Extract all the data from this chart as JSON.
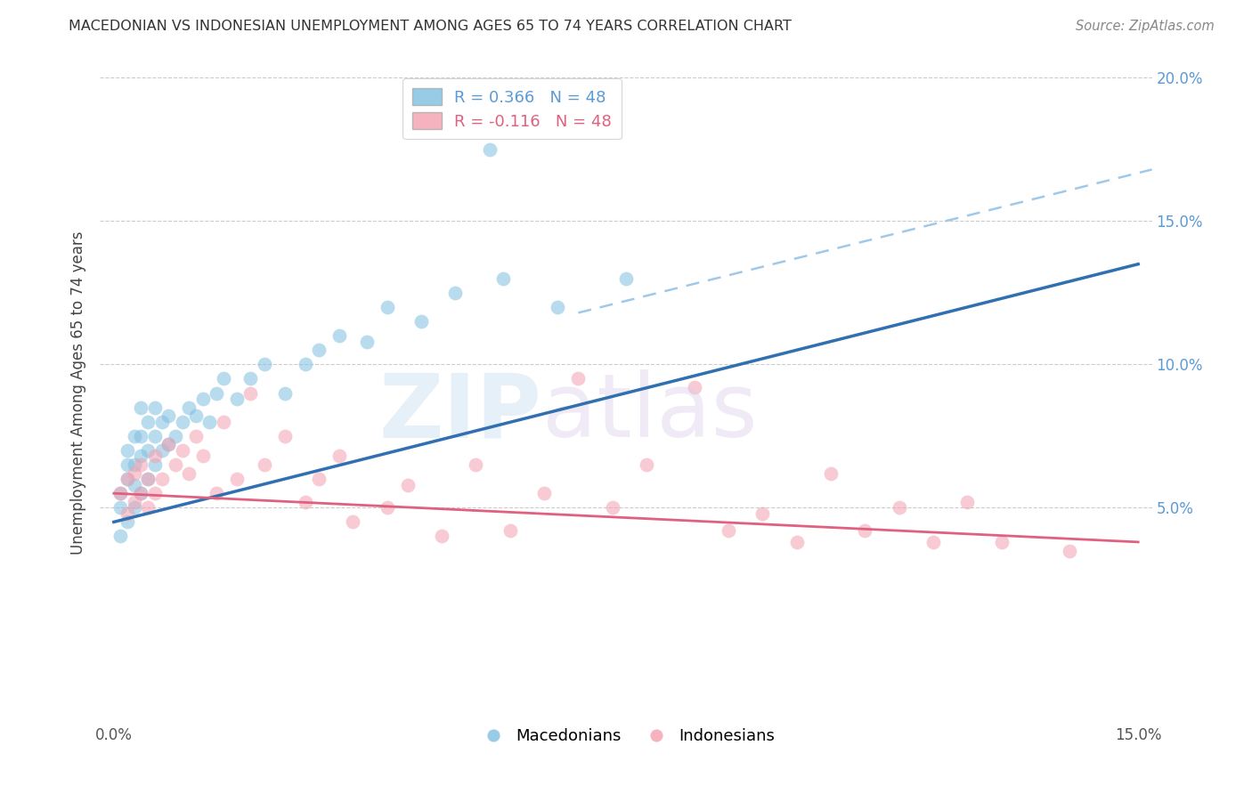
{
  "title": "MACEDONIAN VS INDONESIAN UNEMPLOYMENT AMONG AGES 65 TO 74 YEARS CORRELATION CHART",
  "source": "Source: ZipAtlas.com",
  "ylabel": "Unemployment Among Ages 65 to 74 years",
  "blue_color": "#7fbfdf",
  "pink_color": "#f4a0b0",
  "blue_line_color": "#3070b0",
  "pink_line_color": "#e06080",
  "dashed_line_color": "#a0c8e8",
  "xlim": [
    -0.002,
    0.152
  ],
  "ylim": [
    -0.025,
    0.205
  ],
  "mac_r": 0.366,
  "indo_r": -0.116,
  "n": 48,
  "mac_line_x0": 0.0,
  "mac_line_y0": 0.045,
  "mac_line_x1": 0.15,
  "mac_line_y1": 0.135,
  "indo_line_x0": 0.0,
  "indo_line_y0": 0.055,
  "indo_line_x1": 0.15,
  "indo_line_y1": 0.038,
  "dash_line_x0": 0.068,
  "dash_line_y0": 0.118,
  "dash_line_x1": 0.152,
  "dash_line_y1": 0.168,
  "mac_points_x": [
    0.001,
    0.001,
    0.001,
    0.002,
    0.002,
    0.002,
    0.002,
    0.003,
    0.003,
    0.003,
    0.003,
    0.004,
    0.004,
    0.004,
    0.004,
    0.005,
    0.005,
    0.005,
    0.006,
    0.006,
    0.006,
    0.007,
    0.007,
    0.008,
    0.008,
    0.009,
    0.01,
    0.011,
    0.012,
    0.013,
    0.014,
    0.015,
    0.016,
    0.018,
    0.02,
    0.022,
    0.025,
    0.028,
    0.03,
    0.033,
    0.037,
    0.04,
    0.045,
    0.05,
    0.057,
    0.065,
    0.075,
    0.055
  ],
  "mac_points_y": [
    0.04,
    0.05,
    0.055,
    0.045,
    0.06,
    0.065,
    0.07,
    0.05,
    0.058,
    0.065,
    0.075,
    0.055,
    0.068,
    0.075,
    0.085,
    0.06,
    0.07,
    0.08,
    0.065,
    0.075,
    0.085,
    0.07,
    0.08,
    0.072,
    0.082,
    0.075,
    0.08,
    0.085,
    0.082,
    0.088,
    0.08,
    0.09,
    0.095,
    0.088,
    0.095,
    0.1,
    0.09,
    0.1,
    0.105,
    0.11,
    0.108,
    0.12,
    0.115,
    0.125,
    0.13,
    0.12,
    0.13,
    0.175
  ],
  "indo_points_x": [
    0.001,
    0.002,
    0.002,
    0.003,
    0.003,
    0.004,
    0.004,
    0.005,
    0.005,
    0.006,
    0.006,
    0.007,
    0.008,
    0.009,
    0.01,
    0.011,
    0.012,
    0.013,
    0.015,
    0.016,
    0.018,
    0.02,
    0.022,
    0.025,
    0.028,
    0.03,
    0.033,
    0.035,
    0.04,
    0.043,
    0.048,
    0.053,
    0.058,
    0.063,
    0.068,
    0.073,
    0.078,
    0.085,
    0.09,
    0.095,
    0.1,
    0.105,
    0.11,
    0.115,
    0.12,
    0.125,
    0.13,
    0.14
  ],
  "indo_points_y": [
    0.055,
    0.048,
    0.06,
    0.052,
    0.062,
    0.055,
    0.065,
    0.05,
    0.06,
    0.055,
    0.068,
    0.06,
    0.072,
    0.065,
    0.07,
    0.062,
    0.075,
    0.068,
    0.055,
    0.08,
    0.06,
    0.09,
    0.065,
    0.075,
    0.052,
    0.06,
    0.068,
    0.045,
    0.05,
    0.058,
    0.04,
    0.065,
    0.042,
    0.055,
    0.095,
    0.05,
    0.065,
    0.092,
    0.042,
    0.048,
    0.038,
    0.062,
    0.042,
    0.05,
    0.038,
    0.052,
    0.038,
    0.035
  ]
}
